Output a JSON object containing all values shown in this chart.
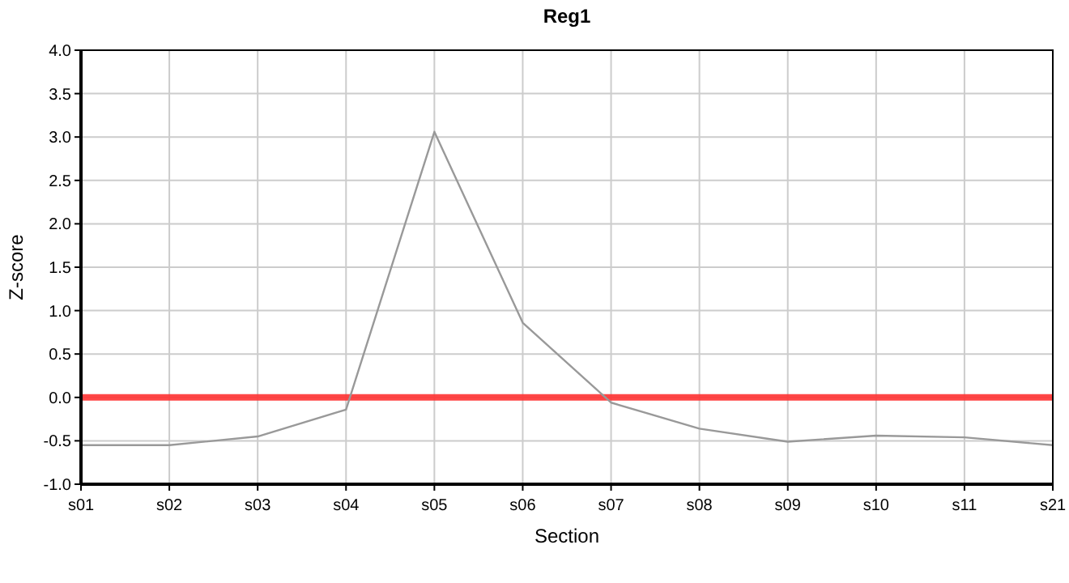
{
  "chart_data": {
    "type": "line",
    "title": "Reg1",
    "xlabel": "Section",
    "ylabel": "Z-score",
    "categories": [
      "s01",
      "s02",
      "s03",
      "s04",
      "s05",
      "s06",
      "s07",
      "s08",
      "s09",
      "s10",
      "s11",
      "s21"
    ],
    "series": [
      {
        "color": "#999999",
        "values": [
          -0.55,
          -0.55,
          -0.45,
          -0.14,
          3.06,
          0.86,
          -0.06,
          -0.36,
          -0.51,
          -0.44,
          -0.46,
          -0.55
        ]
      }
    ],
    "ylim": [
      -1.0,
      4.0
    ],
    "yticks": [
      {
        "value": -1,
        "label": "-1.0"
      },
      {
        "value": -0.5,
        "label": "-0.5"
      },
      {
        "value": 0,
        "label": "0.0"
      },
      {
        "value": 0.5,
        "label": "0.5"
      },
      {
        "value": 1,
        "label": "1.0"
      },
      {
        "value": 1.5,
        "label": "1.5"
      },
      {
        "value": 2,
        "label": "2.0"
      },
      {
        "value": 2.5,
        "label": "2.5"
      },
      {
        "value": 3,
        "label": "3.0"
      },
      {
        "value": 3.5,
        "label": "3.5"
      },
      {
        "value": 4,
        "label": "4.0"
      }
    ],
    "ref_lines": [
      {
        "axis": "y",
        "value": 0,
        "color": "#ff3333"
      }
    ],
    "grid": true,
    "marker": "none",
    "line_style": "solid"
  }
}
